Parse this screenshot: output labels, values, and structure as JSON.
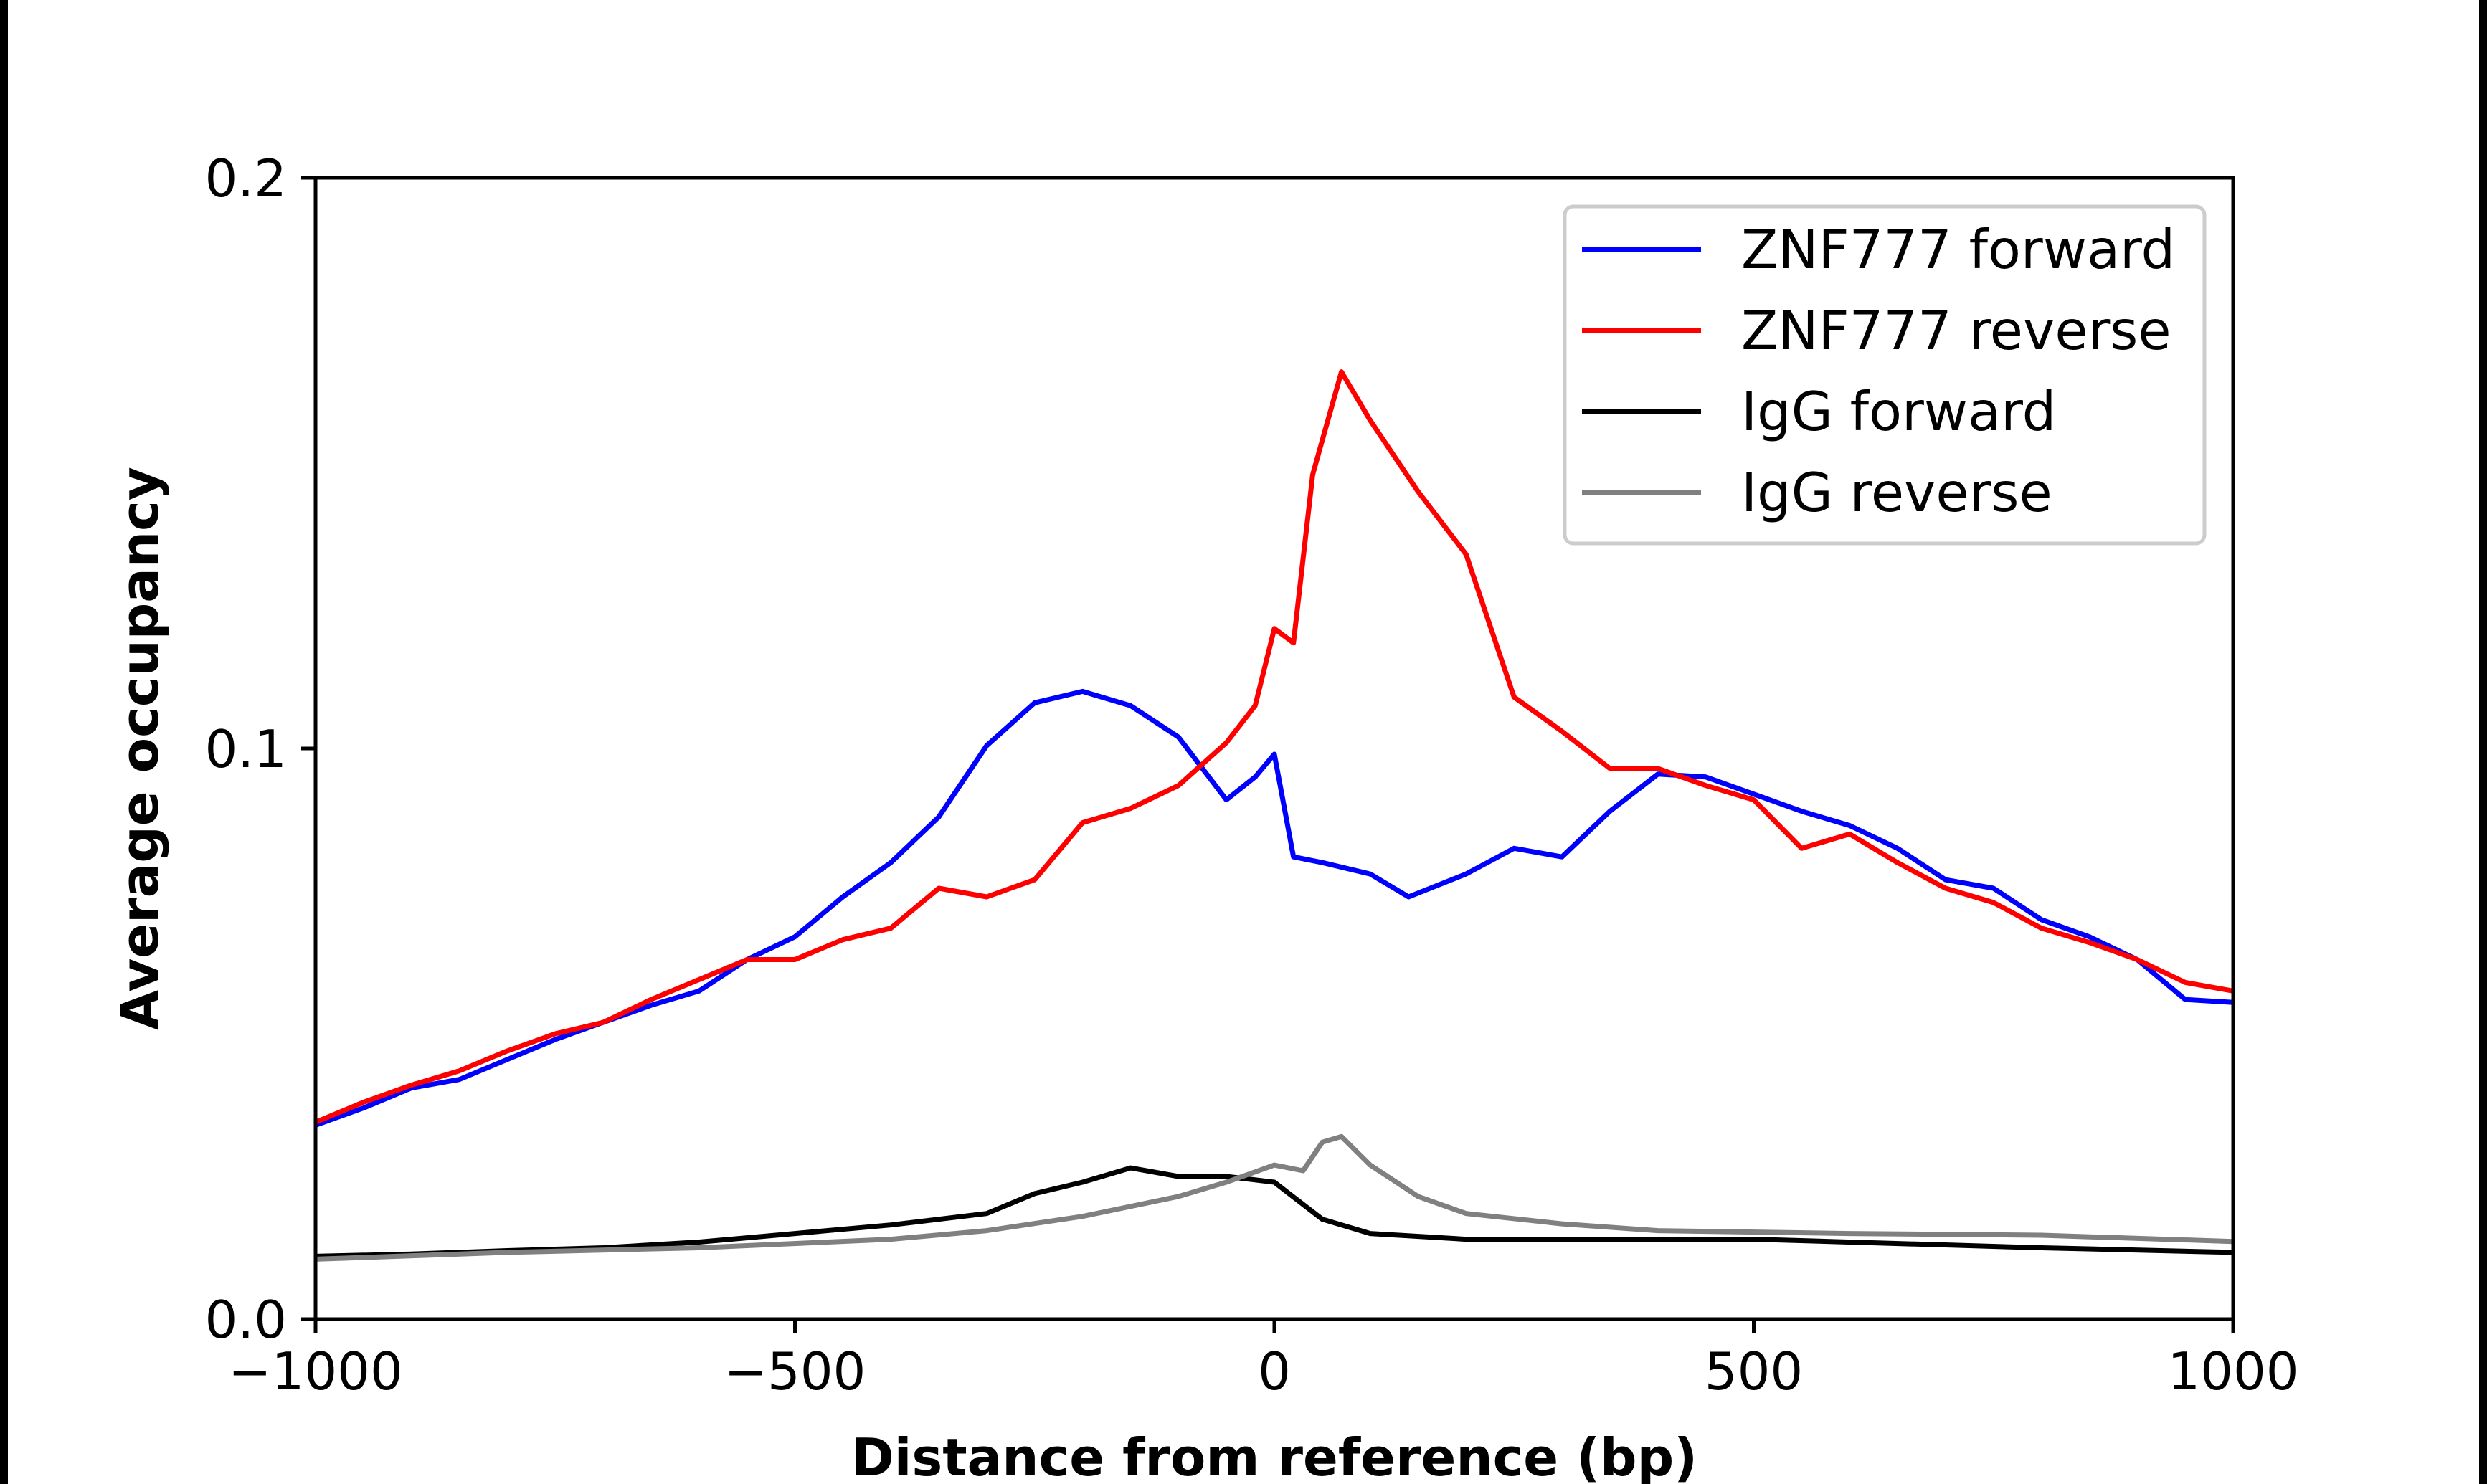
{
  "chart_data": {
    "type": "line",
    "title": "",
    "xlabel": "Distance from reference (bp)",
    "ylabel": "Average occupancy",
    "xlim": [
      -1000,
      1000
    ],
    "ylim": [
      0.0,
      0.2
    ],
    "xticks": [
      -1000,
      -500,
      0,
      500,
      1000
    ],
    "xtick_labels": [
      "−1000",
      "−500",
      "0",
      "500",
      "1000"
    ],
    "yticks": [
      0.0,
      0.1,
      0.2
    ],
    "ytick_labels": [
      "0.0",
      "0.1",
      "0.2"
    ],
    "grid": false,
    "legend_position": "top-right",
    "series": [
      {
        "name": "ZNF777 forward",
        "color": "#0000ff",
        "x": [
          -1000,
          -950,
          -900,
          -850,
          -800,
          -750,
          -700,
          -650,
          -600,
          -550,
          -500,
          -450,
          -400,
          -350,
          -300,
          -250,
          -200,
          -150,
          -100,
          -50,
          -20,
          0,
          20,
          50,
          100,
          140,
          200,
          250,
          300,
          350,
          400,
          450,
          500,
          550,
          600,
          650,
          700,
          750,
          800,
          850,
          900,
          950,
          1000
        ],
        "y": [
          0.034,
          0.037,
          0.0405,
          0.042,
          0.0455,
          0.049,
          0.052,
          0.055,
          0.0575,
          0.063,
          0.067,
          0.074,
          0.08,
          0.088,
          0.1005,
          0.108,
          0.11,
          0.1075,
          0.102,
          0.091,
          0.095,
          0.099,
          0.081,
          0.08,
          0.078,
          0.074,
          0.078,
          0.0825,
          0.081,
          0.089,
          0.0955,
          0.095,
          0.092,
          0.089,
          0.0865,
          0.0825,
          0.077,
          0.0755,
          0.07,
          0.067,
          0.063,
          0.056,
          0.0555
        ]
      },
      {
        "name": "ZNF777 reverse",
        "color": "#ff0000",
        "x": [
          -1000,
          -950,
          -900,
          -850,
          -800,
          -750,
          -700,
          -650,
          -600,
          -550,
          -500,
          -450,
          -400,
          -350,
          -300,
          -250,
          -200,
          -150,
          -100,
          -50,
          -20,
          0,
          20,
          40,
          70,
          100,
          150,
          200,
          250,
          300,
          350,
          400,
          450,
          500,
          550,
          600,
          650,
          700,
          750,
          800,
          850,
          900,
          950,
          1000
        ],
        "y": [
          0.0345,
          0.038,
          0.041,
          0.0435,
          0.047,
          0.05,
          0.052,
          0.056,
          0.0595,
          0.063,
          0.063,
          0.0665,
          0.0685,
          0.0755,
          0.074,
          0.077,
          0.087,
          0.0895,
          0.0935,
          0.101,
          0.1075,
          0.121,
          0.1185,
          0.148,
          0.166,
          0.1575,
          0.145,
          0.134,
          0.109,
          0.103,
          0.0965,
          0.0965,
          0.0935,
          0.091,
          0.0825,
          0.085,
          0.08,
          0.0755,
          0.073,
          0.0685,
          0.066,
          0.063,
          0.059,
          0.0575
        ]
      },
      {
        "name": "IgG forward",
        "color": "#000000",
        "x": [
          -1000,
          -900,
          -800,
          -700,
          -600,
          -500,
          -400,
          -300,
          -250,
          -200,
          -150,
          -100,
          -50,
          0,
          50,
          100,
          200,
          500,
          800,
          1000
        ],
        "y": [
          0.011,
          0.0114,
          0.012,
          0.0125,
          0.0135,
          0.015,
          0.0165,
          0.0185,
          0.022,
          0.024,
          0.0265,
          0.025,
          0.025,
          0.024,
          0.0175,
          0.015,
          0.014,
          0.014,
          0.0125,
          0.0117
        ]
      },
      {
        "name": "IgG reverse",
        "color": "#808080",
        "x": [
          -1000,
          -800,
          -600,
          -400,
          -300,
          -200,
          -100,
          -50,
          0,
          30,
          50,
          70,
          100,
          150,
          200,
          300,
          400,
          600,
          800,
          1000
        ],
        "y": [
          0.0105,
          0.0117,
          0.0125,
          0.014,
          0.0155,
          0.018,
          0.0215,
          0.024,
          0.027,
          0.026,
          0.031,
          0.032,
          0.027,
          0.0215,
          0.0185,
          0.0167,
          0.0155,
          0.015,
          0.0147,
          0.0136
        ]
      }
    ]
  }
}
